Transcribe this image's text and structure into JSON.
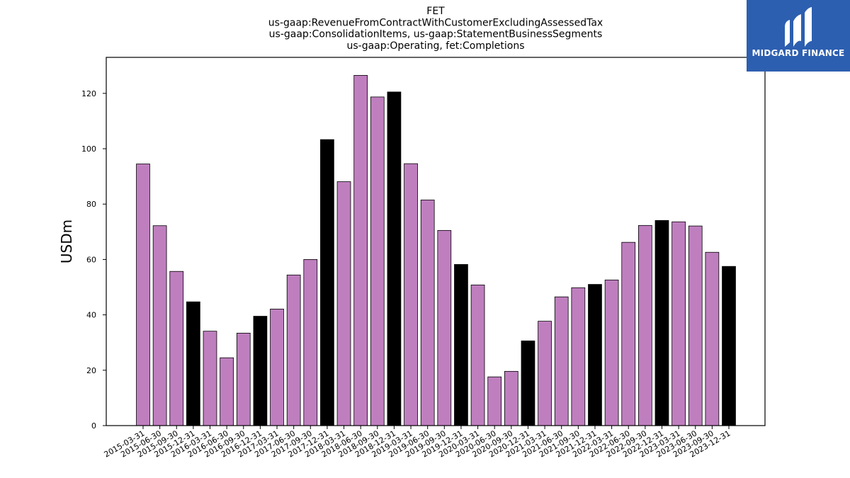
{
  "chart_data": {
    "type": "bar",
    "title_lines": [
      "FET",
      "us-gaap:RevenueFromContractWithCustomerExcludingAssessedTax",
      "us-gaap:ConsolidationItems, us-gaap:StatementBusinessSegments",
      "us-gaap:Operating, fet:Completions"
    ],
    "xlabel": "",
    "ylabel": "USDm",
    "ylim": [
      0,
      133
    ],
    "yticks": [
      0,
      20,
      40,
      60,
      80,
      100,
      120
    ],
    "grid": false,
    "colors": {
      "quarter": "#bf7fbf",
      "year_end": "#000000",
      "edge": "#000000"
    },
    "categories": [
      "2015-03-31",
      "2015-06-30",
      "2015-09-30",
      "2015-12-31",
      "2016-03-31",
      "2016-06-30",
      "2016-09-30",
      "2016-12-31",
      "2017-03-31",
      "2017-06-30",
      "2017-09-30",
      "2017-12-31",
      "2018-03-31",
      "2018-06-30",
      "2018-09-30",
      "2018-12-31",
      "2019-03-31",
      "2019-06-30",
      "2019-09-30",
      "2019-12-31",
      "2020-03-31",
      "2020-06-30",
      "2020-09-30",
      "2020-12-31",
      "2021-03-31",
      "2021-06-30",
      "2021-09-30",
      "2021-12-31",
      "2022-03-31",
      "2022-06-30",
      "2022-09-30",
      "2022-12-31",
      "2023-03-31",
      "2023-06-30",
      "2023-09-30",
      "2023-12-31"
    ],
    "values": [
      94.5,
      72.2,
      55.7,
      44.7,
      34.1,
      24.5,
      33.4,
      39.5,
      42.1,
      54.4,
      60.0,
      103.3,
      88.1,
      126.5,
      118.7,
      120.5,
      94.6,
      81.5,
      70.5,
      58.2,
      50.8,
      17.6,
      19.6,
      30.6,
      37.7,
      46.5,
      49.8,
      51.0,
      52.6,
      66.2,
      72.3,
      74.1,
      73.6,
      72.1,
      62.6,
      57.5
    ]
  },
  "logo": {
    "text": "MIDGARD FINANCE"
  }
}
